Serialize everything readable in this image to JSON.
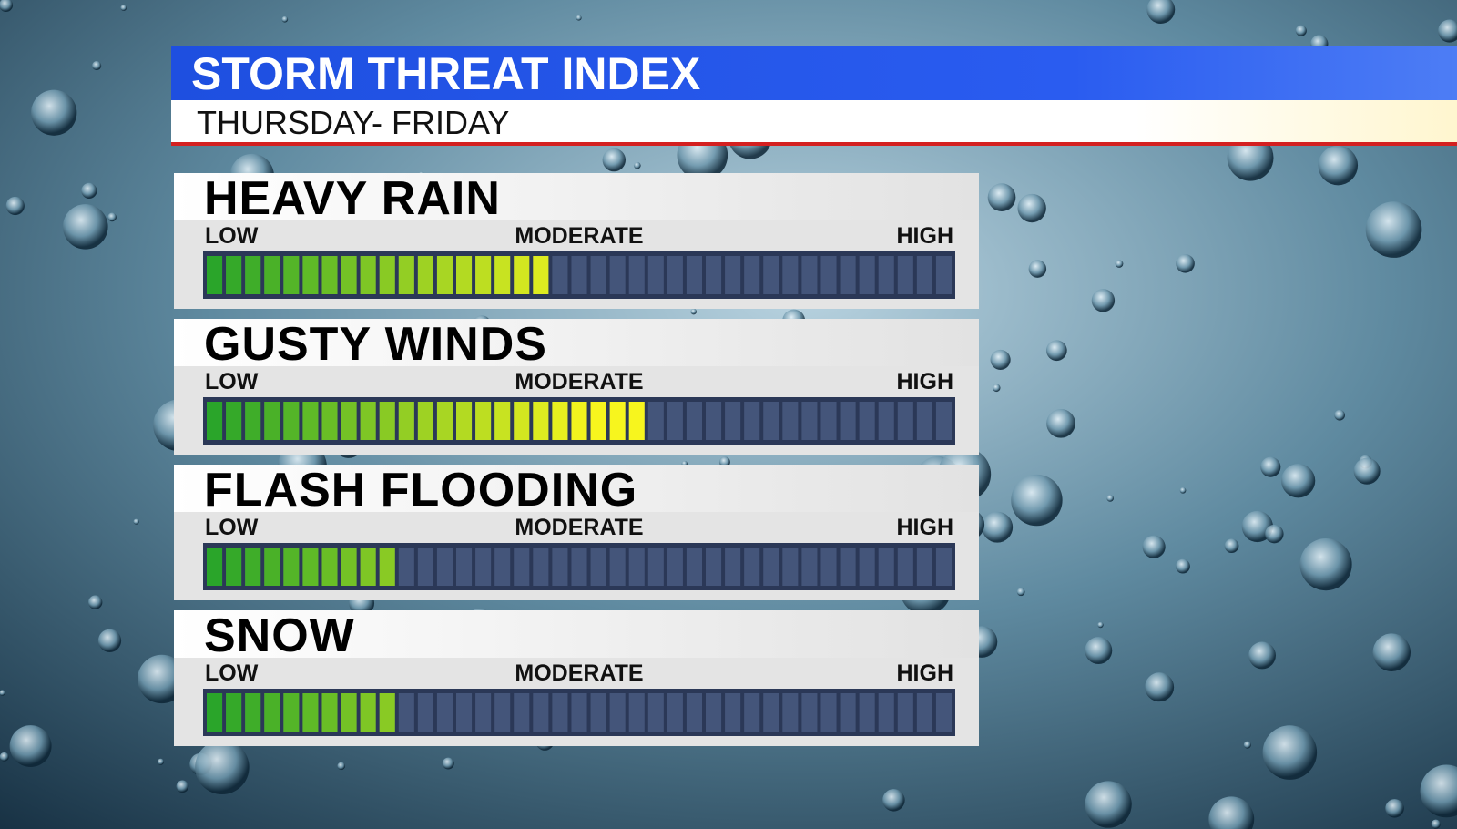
{
  "chart_data": {
    "type": "bar",
    "orientation": "horizontal",
    "title": "STORM THREAT INDEX",
    "subtitle": "THURSDAY- FRIDAY",
    "categories": [
      "HEAVY RAIN",
      "GUSTY WINDS",
      "FLASH FLOODING",
      "SNOW"
    ],
    "values": [
      18,
      23,
      10,
      10
    ],
    "xlim": [
      0,
      39
    ],
    "xticks": [
      {
        "value": 0,
        "label": "LOW"
      },
      {
        "value": 19.5,
        "label": "MODERATE"
      },
      {
        "value": 39,
        "label": "HIGH"
      }
    ],
    "colors": [
      "#2aa52a",
      "#f7f51e"
    ]
  }
}
